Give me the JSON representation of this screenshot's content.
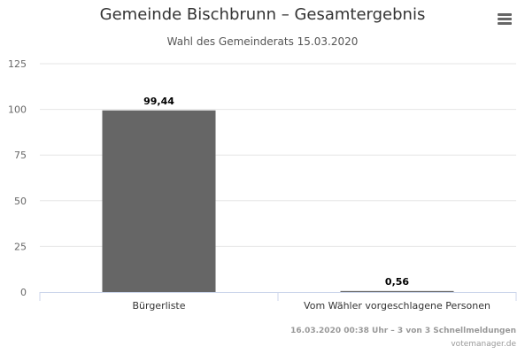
{
  "chart_data": {
    "type": "bar",
    "title": "Gemeinde Bischbrunn – Gesamtergebnis",
    "subtitle": "Wahl des Gemeinderats 15.03.2020",
    "categories": [
      "Bürgerliste",
      "Vom Wähler vorgeschlagene Personen"
    ],
    "values": [
      99.44,
      0.56
    ],
    "value_labels": [
      "99,44",
      "0,56"
    ],
    "y_ticks": [
      "0",
      "25",
      "50",
      "75",
      "100",
      "125"
    ],
    "ylim": [
      0,
      125
    ],
    "grid": true,
    "legend": "none",
    "colors": {
      "bar": "#666666",
      "grid": "#e6e6e6",
      "axis": "#ccd6eb",
      "tick_text": "#666666",
      "value_label": "#000000"
    }
  },
  "credits": {
    "update": "16.03.2020 00:38 Uhr – 3 von 3 Schnellmeldungen",
    "source": "votemanager.de"
  },
  "menu": {
    "icon": "hamburger-menu-icon"
  }
}
